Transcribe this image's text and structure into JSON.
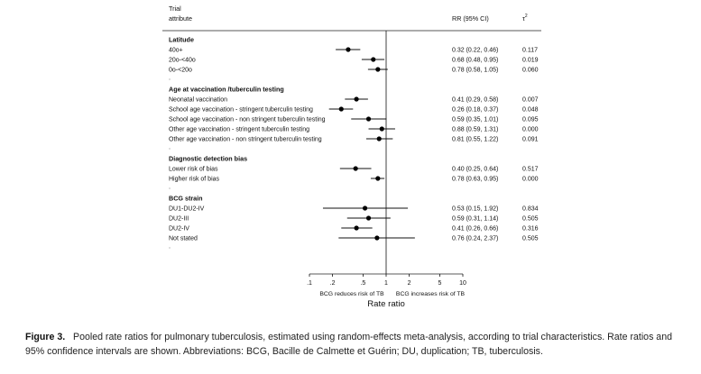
{
  "chart_data": {
    "type": "forest",
    "header": {
      "trial": "Trial",
      "attribute": "attribute",
      "rr": "RR (95% CI)",
      "tau": "τ",
      "tau_sup": "2"
    },
    "xscale": "log",
    "xlim": [
      0.1,
      10
    ],
    "xticks": [
      {
        "label": ".1",
        "value": 0.1
      },
      {
        "label": ".2",
        "value": 0.2
      },
      {
        "label": ".5",
        "value": 0.5
      },
      {
        "label": "1",
        "value": 1
      },
      {
        "label": "2",
        "value": 2
      },
      {
        "label": "5",
        "value": 5
      },
      {
        "label": "10",
        "value": 10
      }
    ],
    "reference_line": 1,
    "xlabel": "Rate ratio",
    "left_note": "BCG reduces risk of TB",
    "right_note": "BCG increases risk of TB",
    "groups": [
      {
        "title": "Latitude",
        "rows": [
          {
            "label": "40o+",
            "rr": 0.32,
            "lo": 0.22,
            "hi": 0.46,
            "ci_text": "0.32 (0.22, 0.46)",
            "tau2": "0.117"
          },
          {
            "label": "20o-<40o",
            "rr": 0.68,
            "lo": 0.48,
            "hi": 0.95,
            "ci_text": "0.68 (0.48, 0.95)",
            "tau2": "0.019"
          },
          {
            "label": "0o-<20o",
            "rr": 0.78,
            "lo": 0.58,
            "hi": 1.05,
            "ci_text": "0.78 (0.58, 1.05)",
            "tau2": "0.060"
          }
        ]
      },
      {
        "title": "Age at vaccination /tuberculin testing",
        "rows": [
          {
            "label": "Neonatal vaccination",
            "rr": 0.41,
            "lo": 0.29,
            "hi": 0.58,
            "ci_text": "0.41 (0.29, 0.58)",
            "tau2": "0.007"
          },
          {
            "label": "School age vaccination - stringent tuberculin testing",
            "rr": 0.26,
            "lo": 0.18,
            "hi": 0.37,
            "ci_text": "0.26 (0.18, 0.37)",
            "tau2": "0.048"
          },
          {
            "label": "School age vaccination - non stringent tuberculin testing",
            "rr": 0.59,
            "lo": 0.35,
            "hi": 1.01,
            "ci_text": "0.59 (0.35, 1.01)",
            "tau2": "0.095"
          },
          {
            "label": "Other age vaccination - stringent tuberculin testing",
            "rr": 0.88,
            "lo": 0.59,
            "hi": 1.31,
            "ci_text": "0.88 (0.59, 1.31)",
            "tau2": "0.000"
          },
          {
            "label": "Other age vaccination - non stringent tuberculin testing",
            "rr": 0.81,
            "lo": 0.55,
            "hi": 1.22,
            "ci_text": "0.81 (0.55, 1.22)",
            "tau2": "0.091"
          }
        ]
      },
      {
        "title": "Diagnostic detection bias",
        "rows": [
          {
            "label": "Lower risk of bias",
            "rr": 0.4,
            "lo": 0.25,
            "hi": 0.64,
            "ci_text": "0.40 (0.25, 0.64)",
            "tau2": "0.517"
          },
          {
            "label": "Higher risk of bias",
            "rr": 0.78,
            "lo": 0.63,
            "hi": 0.95,
            "ci_text": "0.78 (0.63, 0.95)",
            "tau2": "0.000"
          }
        ]
      },
      {
        "title": "BCG strain",
        "rows": [
          {
            "label": "DU1-DU2-IV",
            "rr": 0.53,
            "lo": 0.15,
            "hi": 1.92,
            "ci_text": "0.53 (0.15, 1.92)",
            "tau2": "0.834"
          },
          {
            "label": "DU2-III",
            "rr": 0.59,
            "lo": 0.31,
            "hi": 1.14,
            "ci_text": "0.59 (0.31, 1.14)",
            "tau2": "0.505"
          },
          {
            "label": "DU2-IV",
            "rr": 0.41,
            "lo": 0.26,
            "hi": 0.66,
            "ci_text": "0.41 (0.26, 0.66)",
            "tau2": "0.316"
          },
          {
            "label": "Not stated",
            "rr": 0.76,
            "lo": 0.24,
            "hi": 2.37,
            "ci_text": "0.76 (0.24, 2.37)",
            "tau2": "0.505"
          }
        ]
      }
    ]
  },
  "caption": {
    "label": "Figure 3.",
    "text": "Pooled rate ratios for pulmonary tuberculosis, estimated using random-effects meta-analysis, according to trial characteristics. Rate ratios and 95% confidence intervals are shown. Abbreviations: BCG, Bacille de Calmette et Guérin; DU, duplication; TB, tuberculosis."
  }
}
